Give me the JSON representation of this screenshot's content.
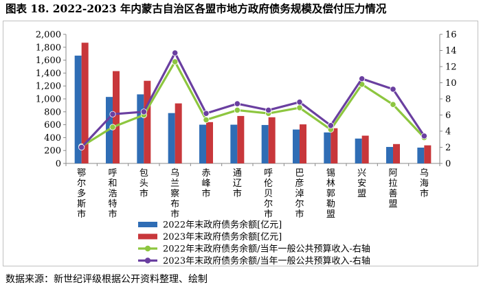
{
  "title": "图表 18. 2022-2023 年内蒙古自治区各盟市地方政府债务规模及偿付压力情况",
  "source": "数据来源：新世纪评级根据公开资料整理、绘制",
  "chart_data": {
    "type": "bar",
    "categories": [
      "鄂尔多斯市",
      "呼和浩特市",
      "包头市",
      "乌兰察布市",
      "赤峰市",
      "通辽市",
      "呼伦贝尔市",
      "巴彦淖尔市",
      "锡林郭勒盟",
      "兴安盟",
      "阿拉善盟",
      "乌海市"
    ],
    "series": [
      {
        "name": "2022年末政府债务余额[亿元]",
        "type": "bar",
        "axis": "left",
        "color": "#2f6db5",
        "values": [
          1670,
          1030,
          1070,
          780,
          600,
          600,
          595,
          525,
          480,
          385,
          255,
          245
        ]
      },
      {
        "name": "2023年末政府债务余额[亿元]",
        "type": "bar",
        "axis": "left",
        "color": "#c8373b",
        "values": [
          1870,
          1430,
          1280,
          930,
          640,
          735,
          715,
          605,
          545,
          430,
          300,
          280
        ]
      },
      {
        "name": "2022年末政府债务余额/当年一般公共预算收入-右轴",
        "type": "line",
        "axis": "right",
        "color": "#8dc63f",
        "values": [
          2.1,
          4.5,
          6.0,
          12.6,
          5.4,
          6.6,
          6.2,
          6.9,
          4.2,
          9.8,
          7.3,
          3.2
        ]
      },
      {
        "name": "2023年末政府债务余额/当年一般公共预算收入-右轴",
        "type": "line",
        "axis": "right",
        "color": "#6a3fa0",
        "values": [
          2.0,
          6.1,
          6.4,
          13.7,
          6.2,
          7.4,
          6.6,
          7.6,
          4.7,
          10.5,
          9.2,
          3.4
        ]
      }
    ],
    "left_axis": {
      "min": 0,
      "max": 2000,
      "step": 200,
      "ticks": [
        "0",
        "200",
        "400",
        "600",
        "800",
        "1,000",
        "1,200",
        "1,400",
        "1,600",
        "1,800",
        "2,000"
      ]
    },
    "right_axis": {
      "min": 0,
      "max": 16,
      "step": 2,
      "ticks": [
        "0",
        "2",
        "4",
        "6",
        "8",
        "10",
        "12",
        "14",
        "16"
      ]
    },
    "grid": false,
    "legend_position": "bottom"
  }
}
